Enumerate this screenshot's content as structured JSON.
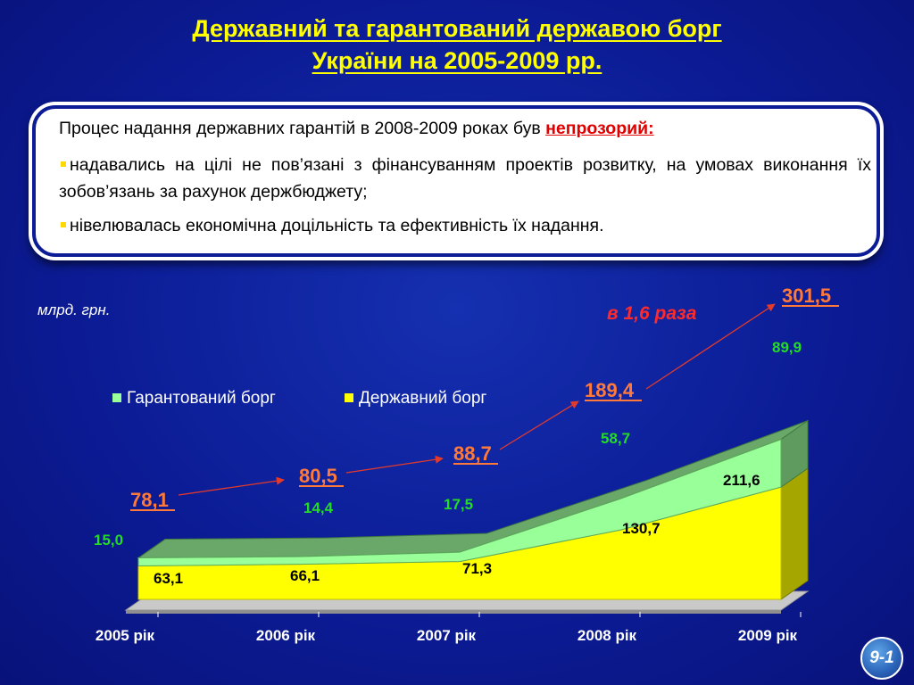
{
  "title": {
    "line1": "Державний та гарантований державою борг",
    "line2": "України на 2005-2009 рр."
  },
  "info_box": {
    "intro": "Процес надання державних гарантій в 2008-2009 роках був ",
    "highlight": "непрозорий:",
    "bullet1": "надавались на цілі не пов’язані з фінансуванням проектів розвитку, на умовах виконання їх зобов’язань за рахунок держбюджету;",
    "bullet2": "нівелювалась економічна доцільність та ефективність їх надання."
  },
  "slide_number": "9-1",
  "chart_data": {
    "type": "area",
    "stacked": true,
    "unit_label": "млрд. грн.",
    "categories": [
      "2005 рік",
      "2006 рік",
      "2007 рік",
      "2008 рік",
      "2009 рік"
    ],
    "series": [
      {
        "name": "Державний борг",
        "color": "#ffff00",
        "values": [
          63.1,
          66.1,
          71.3,
          130.7,
          211.6
        ],
        "labels": [
          "63,1",
          "66,1",
          "71,3",
          "130,7",
          "211,6"
        ]
      },
      {
        "name": "Гарантований борг",
        "color": "#99ff99",
        "values": [
          15.0,
          14.4,
          17.5,
          58.7,
          89.9
        ],
        "labels": [
          "15,0",
          "14,4",
          "17,5",
          "58,7",
          "89,9"
        ]
      }
    ],
    "totals": [
      78.1,
      80.5,
      88.7,
      189.4,
      301.5
    ],
    "total_labels": [
      "78,1",
      "80,5",
      "88,7",
      "189,4",
      "301,5"
    ],
    "annotation": "в 1,6 раза",
    "legend_position": "top-left",
    "grid": false
  }
}
